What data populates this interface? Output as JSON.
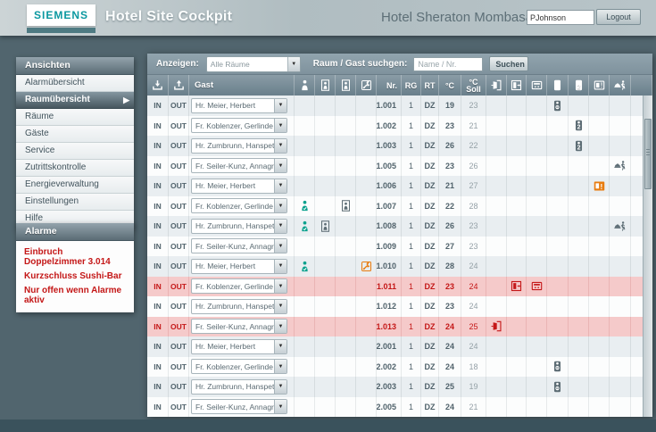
{
  "header": {
    "brand": "SIEMENS",
    "app_title": "Hotel Site Cockpit",
    "hotel_name": "Hotel Sheraton Mombasa",
    "username": "PJohnson",
    "logout_label": "Logout"
  },
  "sidebar": {
    "views_title": "Ansichten",
    "views": [
      {
        "label": "Alarmübersicht",
        "selected": false
      },
      {
        "label": "Raumübersicht",
        "selected": true
      },
      {
        "label": "Räume",
        "selected": false
      },
      {
        "label": "Gäste",
        "selected": false
      },
      {
        "label": "Service",
        "selected": false
      },
      {
        "label": "Zutrittskontrolle",
        "selected": false
      },
      {
        "label": "Energieverwaltung",
        "selected": false
      },
      {
        "label": "Einstellungen",
        "selected": false
      },
      {
        "label": "Hilfe",
        "selected": false
      }
    ],
    "alarms_title": "Alarme",
    "alarms": [
      "Einbruch Doppelzimmer 3.014",
      "Kurzschluss Sushi-Bar",
      "Nur offen wenn Alarme aktiv"
    ]
  },
  "filterbar": {
    "show_label": "Anzeigen:",
    "show_value": "Alle Räume",
    "search_label": "Raum / Gast suchgen:",
    "search_placeholder": "Name / Nr.",
    "search_button": "Suchen"
  },
  "table": {
    "in_label": "IN",
    "out_label": "OUT",
    "columns": [
      {
        "id": "in",
        "icon": "checkin-icon"
      },
      {
        "id": "out",
        "icon": "checkout-icon"
      },
      {
        "id": "guest",
        "label": "Gast"
      },
      {
        "id": "occupancy",
        "icon": "person-check-icon"
      },
      {
        "id": "presence1",
        "icon": "person-frame-icon"
      },
      {
        "id": "presence2",
        "icon": "person-frame-icon"
      },
      {
        "id": "service",
        "icon": "wrench-frame-icon"
      },
      {
        "id": "nr",
        "label": "Nr."
      },
      {
        "id": "rg",
        "label": "RG"
      },
      {
        "id": "rt",
        "label": "RT"
      },
      {
        "id": "temp",
        "label": "°C"
      },
      {
        "id": "soll",
        "label": "°C",
        "label2": "Soll"
      },
      {
        "id": "door",
        "icon": "door-open-icon"
      },
      {
        "id": "window",
        "icon": "window-open-icon"
      },
      {
        "id": "safe",
        "icon": "safe-icon"
      },
      {
        "id": "dnd",
        "icon": "hanger-dnd-icon"
      },
      {
        "id": "makeup",
        "icon": "hanger-service-icon"
      },
      {
        "id": "message",
        "icon": "display-alert-icon"
      },
      {
        "id": "roomservice",
        "icon": "bell-person-icon"
      },
      {
        "id": "filler"
      }
    ],
    "rows": [
      {
        "guest": "Hr. Meier, Herbert",
        "nr": "1.001",
        "rg": "1",
        "rt": "DZ",
        "temp": "19",
        "soll": "23",
        "alarm": false,
        "icons": [
          {
            "col": "dnd",
            "icon": "hanger-dnd-icon",
            "tone": "gray"
          }
        ]
      },
      {
        "guest": "Fr. Koblenzer, Gerlinde",
        "nr": "1.002",
        "rg": "1",
        "rt": "DZ",
        "temp": "23",
        "soll": "21",
        "alarm": false,
        "icons": [
          {
            "col": "makeup",
            "icon": "hanger-service-icon",
            "tone": "gray"
          }
        ]
      },
      {
        "guest": "Hr. Zumbrunn, Hanspeter",
        "nr": "1.003",
        "rg": "1",
        "rt": "DZ",
        "temp": "26",
        "soll": "22",
        "alarm": false,
        "icons": [
          {
            "col": "makeup",
            "icon": "hanger-service-icon",
            "tone": "gray"
          }
        ]
      },
      {
        "guest": "Fr. Seiler-Kunz, Annagret",
        "nr": "1.005",
        "rg": "1",
        "rt": "DZ",
        "temp": "23",
        "soll": "26",
        "alarm": false,
        "icons": [
          {
            "col": "roomservice",
            "icon": "bell-person-icon",
            "tone": "gray"
          }
        ]
      },
      {
        "guest": "Hr. Meier, Herbert",
        "nr": "1.006",
        "rg": "1",
        "rt": "DZ",
        "temp": "21",
        "soll": "27",
        "alarm": false,
        "icons": [
          {
            "col": "message",
            "icon": "display-alert-solid-icon",
            "tone": "orange"
          }
        ]
      },
      {
        "guest": "Fr. Koblenzer, Gerlinde",
        "nr": "1.007",
        "rg": "1",
        "rt": "DZ",
        "temp": "22",
        "soll": "28",
        "alarm": false,
        "icons": [
          {
            "col": "occupancy",
            "icon": "person-check-icon",
            "tone": "teal"
          },
          {
            "col": "presence2",
            "icon": "person-frame-icon",
            "tone": "gray"
          }
        ]
      },
      {
        "guest": "Hr. Zumbrunn, Hanspeter",
        "nr": "1.008",
        "rg": "1",
        "rt": "DZ",
        "temp": "26",
        "soll": "23",
        "alarm": false,
        "icons": [
          {
            "col": "occupancy",
            "icon": "person-check-icon",
            "tone": "teal"
          },
          {
            "col": "presence1",
            "icon": "person-frame-icon",
            "tone": "gray"
          },
          {
            "col": "roomservice",
            "icon": "bell-person-icon",
            "tone": "gray"
          }
        ]
      },
      {
        "guest": "Fr. Seiler-Kunz, Annagret",
        "nr": "1.009",
        "rg": "1",
        "rt": "DZ",
        "temp": "27",
        "soll": "23",
        "alarm": false,
        "icons": []
      },
      {
        "guest": "Hr. Meier, Herbert",
        "nr": "1.010",
        "rg": "1",
        "rt": "DZ",
        "temp": "28",
        "soll": "24",
        "alarm": false,
        "icons": [
          {
            "col": "occupancy",
            "icon": "person-check-icon",
            "tone": "teal"
          },
          {
            "col": "service",
            "icon": "wrench-frame-icon",
            "tone": "orange"
          }
        ]
      },
      {
        "guest": "Fr. Koblenzer, Gerlinde",
        "nr": "1.011",
        "rg": "1",
        "rt": "DZ",
        "temp": "23",
        "soll": "24",
        "alarm": true,
        "icons": [
          {
            "col": "window",
            "icon": "window-open-icon",
            "tone": "red"
          },
          {
            "col": "safe",
            "icon": "safe-icon",
            "tone": "red"
          }
        ]
      },
      {
        "guest": "Hr. Zumbrunn, Hanspeter",
        "nr": "1.012",
        "rg": "1",
        "rt": "DZ",
        "temp": "23",
        "soll": "24",
        "alarm": false,
        "icons": []
      },
      {
        "guest": "Fr. Seiler-Kunz, Annagret",
        "nr": "1.013",
        "rg": "1",
        "rt": "DZ",
        "temp": "24",
        "soll": "25",
        "alarm": true,
        "icons": [
          {
            "col": "door",
            "icon": "door-open-icon",
            "tone": "red"
          }
        ]
      },
      {
        "guest": "Hr. Meier, Herbert",
        "nr": "2.001",
        "rg": "1",
        "rt": "DZ",
        "temp": "24",
        "soll": "24",
        "alarm": false,
        "icons": []
      },
      {
        "guest": "Fr. Koblenzer, Gerlinde",
        "nr": "2.002",
        "rg": "1",
        "rt": "DZ",
        "temp": "24",
        "soll": "18",
        "alarm": false,
        "icons": [
          {
            "col": "dnd",
            "icon": "hanger-dnd-icon",
            "tone": "gray"
          }
        ]
      },
      {
        "guest": "Hr. Zumbrunn, Hanspeter",
        "nr": "2.003",
        "rg": "1",
        "rt": "DZ",
        "temp": "25",
        "soll": "19",
        "alarm": false,
        "icons": [
          {
            "col": "dnd",
            "icon": "hanger-dnd-icon",
            "tone": "gray"
          }
        ]
      },
      {
        "guest": "Fr. Seiler-Kunz, Annagret",
        "nr": "2.005",
        "rg": "1",
        "rt": "DZ",
        "temp": "24",
        "soll": "21",
        "alarm": false,
        "icons": []
      }
    ]
  },
  "colors": {
    "accent_teal": "#0AA18D",
    "alert_orange": "#E87C10",
    "alarm_red": "#C51718",
    "alarm_row_bg": "#F5CACA"
  }
}
